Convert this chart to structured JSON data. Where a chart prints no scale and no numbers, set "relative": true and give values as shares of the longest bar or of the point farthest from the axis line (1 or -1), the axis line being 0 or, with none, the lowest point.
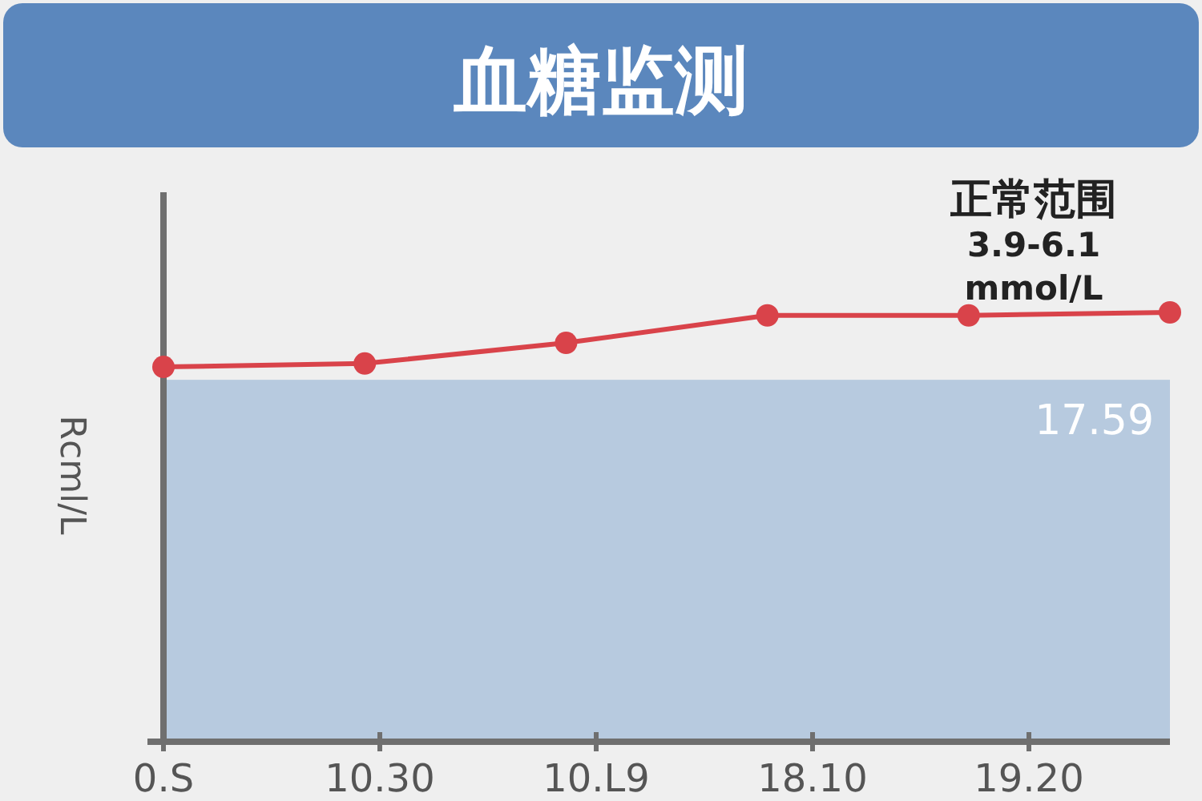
{
  "chart_data": {
    "type": "line",
    "title": "血糖监测",
    "ylabel": "Rcml/L",
    "relative": true,
    "categories": [
      null,
      null,
      null,
      null,
      null,
      null
    ],
    "series": [
      {
        "color": "#d9434a",
        "values": [
          0.873,
          0.881,
          0.929,
          0.993,
          0.993,
          1
        ]
      }
    ],
    "bands": [
      {
        "axis": "y",
        "from": 0,
        "to": 0.843,
        "label": "17.59",
        "color": "#b7cadf"
      }
    ],
    "annotations": [
      "正常范围\n3.9-6.1\nmmol/L",
      "0.S",
      "10.30",
      "10.L9",
      "18.10",
      "19.20"
    ],
    "marker": "circle",
    "line_style": "solid"
  }
}
